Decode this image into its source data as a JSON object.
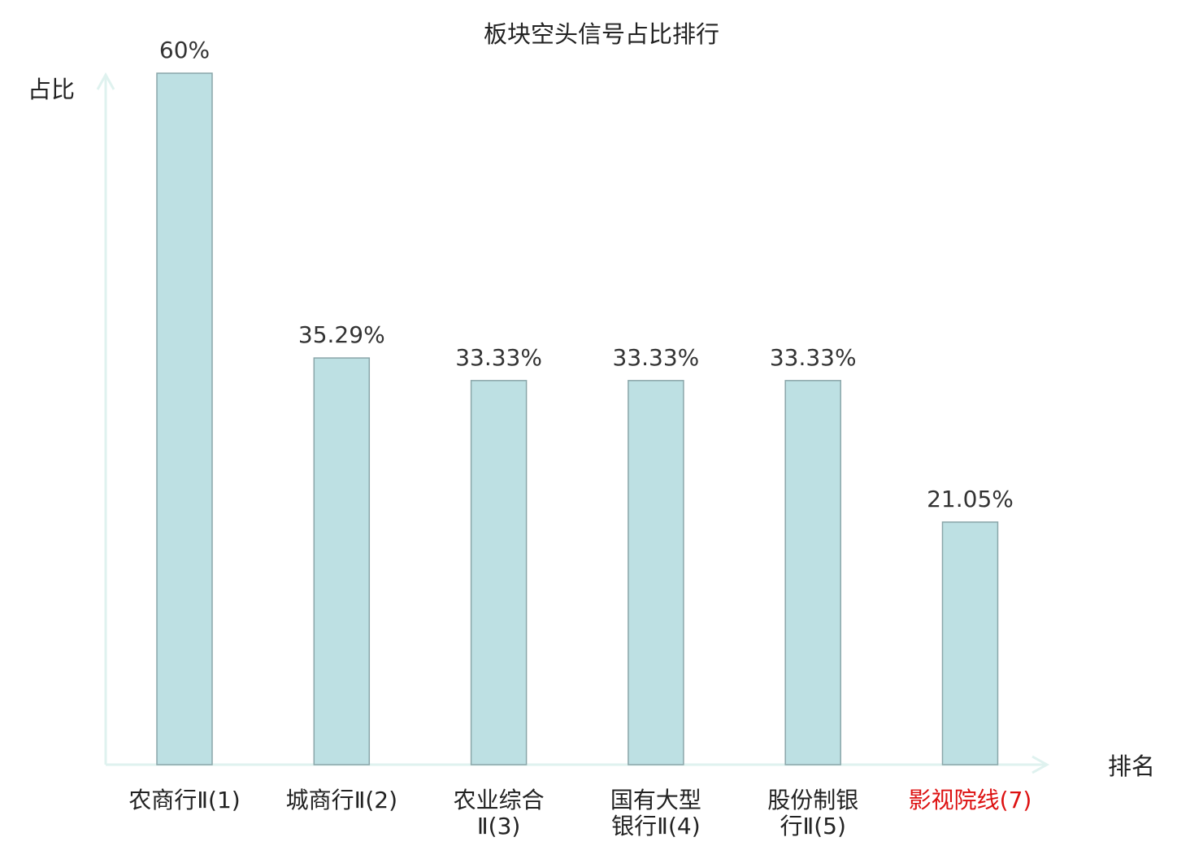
{
  "chart_data": {
    "type": "bar",
    "title": "板块空头信号占比排行",
    "ylabel": "占比",
    "xlabel": "排名",
    "categories": [
      [
        "农商行Ⅱ(1)"
      ],
      [
        "城商行Ⅱ(2)"
      ],
      [
        "农业综合",
        "Ⅱ(3)"
      ],
      [
        "国有大型",
        "银行Ⅱ(4)"
      ],
      [
        "股份制银",
        "行Ⅱ(5)"
      ],
      [
        "影视院线(7)"
      ]
    ],
    "values": [
      60,
      35.29,
      33.33,
      33.33,
      33.33,
      21.05
    ],
    "value_labels": [
      "60%",
      "35.29%",
      "33.33%",
      "33.33%",
      "33.33%",
      "21.05%"
    ],
    "highlight_index": 5,
    "ylim": [
      0,
      60
    ],
    "grid": false,
    "colors": {
      "bar_fill": "#bde0e3",
      "bar_stroke": "#8aa6a9",
      "axis": "#dff2ef",
      "label": "#222222",
      "value_label": "#333333",
      "highlight": "#dd1111"
    }
  }
}
